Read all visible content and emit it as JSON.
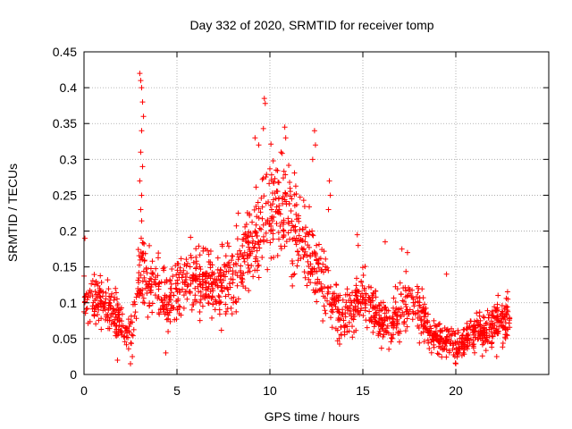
{
  "chart_data": {
    "type": "scatter",
    "title": "Day 332 of 2020, SRMTID for receiver tomp",
    "xlabel": "GPS time / hours",
    "ylabel": "SRMTID / TECUs",
    "xlim": [
      0,
      25
    ],
    "ylim": [
      0,
      0.45
    ],
    "xticks": [
      "0",
      "5",
      "10",
      "15",
      "20"
    ],
    "yticks": [
      "0",
      "0.05",
      "0.1",
      "0.15",
      "0.2",
      "0.25",
      "0.3",
      "0.35",
      "0.4",
      "0.45"
    ],
    "grid": true,
    "marker": "+",
    "color": "#ff0000",
    "x_end_hours": 22.9,
    "envelope": [
      {
        "t": 0.0,
        "y": 0.1
      },
      {
        "t": 0.5,
        "y": 0.11
      },
      {
        "t": 1.0,
        "y": 0.1
      },
      {
        "t": 1.5,
        "y": 0.09
      },
      {
        "t": 2.0,
        "y": 0.07
      },
      {
        "t": 2.5,
        "y": 0.06
      },
      {
        "t": 2.8,
        "y": 0.1
      },
      {
        "t": 3.1,
        "y": 0.16
      },
      {
        "t": 3.5,
        "y": 0.12
      },
      {
        "t": 4.0,
        "y": 0.13
      },
      {
        "t": 4.5,
        "y": 0.09
      },
      {
        "t": 5.0,
        "y": 0.12
      },
      {
        "t": 5.5,
        "y": 0.14
      },
      {
        "t": 6.0,
        "y": 0.13
      },
      {
        "t": 6.5,
        "y": 0.14
      },
      {
        "t": 7.0,
        "y": 0.12
      },
      {
        "t": 7.5,
        "y": 0.13
      },
      {
        "t": 8.0,
        "y": 0.14
      },
      {
        "t": 8.5,
        "y": 0.15
      },
      {
        "t": 9.0,
        "y": 0.18
      },
      {
        "t": 9.5,
        "y": 0.2
      },
      {
        "t": 10.0,
        "y": 0.23
      },
      {
        "t": 10.5,
        "y": 0.24
      },
      {
        "t": 11.0,
        "y": 0.22
      },
      {
        "t": 11.5,
        "y": 0.2
      },
      {
        "t": 12.0,
        "y": 0.18
      },
      {
        "t": 12.5,
        "y": 0.14
      },
      {
        "t": 13.0,
        "y": 0.12
      },
      {
        "t": 13.5,
        "y": 0.09
      },
      {
        "t": 14.0,
        "y": 0.08
      },
      {
        "t": 14.5,
        "y": 0.09
      },
      {
        "t": 15.0,
        "y": 0.11
      },
      {
        "t": 15.5,
        "y": 0.09
      },
      {
        "t": 16.0,
        "y": 0.08
      },
      {
        "t": 16.5,
        "y": 0.07
      },
      {
        "t": 17.0,
        "y": 0.09
      },
      {
        "t": 17.5,
        "y": 0.11
      },
      {
        "t": 18.0,
        "y": 0.09
      },
      {
        "t": 18.5,
        "y": 0.06
      },
      {
        "t": 19.0,
        "y": 0.05
      },
      {
        "t": 19.5,
        "y": 0.05
      },
      {
        "t": 20.0,
        "y": 0.04
      },
      {
        "t": 20.5,
        "y": 0.05
      },
      {
        "t": 21.0,
        "y": 0.06
      },
      {
        "t": 21.5,
        "y": 0.06
      },
      {
        "t": 22.0,
        "y": 0.07
      },
      {
        "t": 22.5,
        "y": 0.08
      },
      {
        "t": 22.9,
        "y": 0.08
      }
    ],
    "spikes": [
      {
        "t": 3.0,
        "y": 0.42
      },
      {
        "t": 3.05,
        "y": 0.41
      },
      {
        "t": 3.1,
        "y": 0.4
      },
      {
        "t": 3.15,
        "y": 0.38
      },
      {
        "t": 3.2,
        "y": 0.36
      },
      {
        "t": 3.1,
        "y": 0.34
      },
      {
        "t": 3.05,
        "y": 0.31
      },
      {
        "t": 3.15,
        "y": 0.29
      },
      {
        "t": 3.0,
        "y": 0.27
      },
      {
        "t": 3.1,
        "y": 0.25
      },
      {
        "t": 3.05,
        "y": 0.23
      },
      {
        "t": 9.7,
        "y": 0.385
      },
      {
        "t": 9.75,
        "y": 0.378
      },
      {
        "t": 9.65,
        "y": 0.343
      },
      {
        "t": 9.2,
        "y": 0.33
      },
      {
        "t": 9.4,
        "y": 0.32
      },
      {
        "t": 10.8,
        "y": 0.345
      },
      {
        "t": 10.85,
        "y": 0.33
      },
      {
        "t": 10.6,
        "y": 0.31
      },
      {
        "t": 12.4,
        "y": 0.34
      },
      {
        "t": 12.45,
        "y": 0.32
      },
      {
        "t": 12.3,
        "y": 0.3
      },
      {
        "t": 13.2,
        "y": 0.27
      },
      {
        "t": 13.25,
        "y": 0.25
      },
      {
        "t": 13.15,
        "y": 0.23
      },
      {
        "t": 14.7,
        "y": 0.195
      },
      {
        "t": 14.75,
        "y": 0.18
      },
      {
        "t": 16.2,
        "y": 0.185
      },
      {
        "t": 17.1,
        "y": 0.175
      },
      {
        "t": 17.4,
        "y": 0.17
      },
      {
        "t": 19.5,
        "y": 0.14
      },
      {
        "t": 0.05,
        "y": 0.19
      },
      {
        "t": 2.5,
        "y": 0.015
      },
      {
        "t": 2.6,
        "y": 0.025
      },
      {
        "t": 1.8,
        "y": 0.02
      },
      {
        "t": 4.4,
        "y": 0.03
      },
      {
        "t": 20.0,
        "y": 0.015
      },
      {
        "t": 22.2,
        "y": 0.025
      },
      {
        "t": 22.8,
        "y": 0.105
      },
      {
        "t": 8.3,
        "y": 0.225
      }
    ]
  }
}
